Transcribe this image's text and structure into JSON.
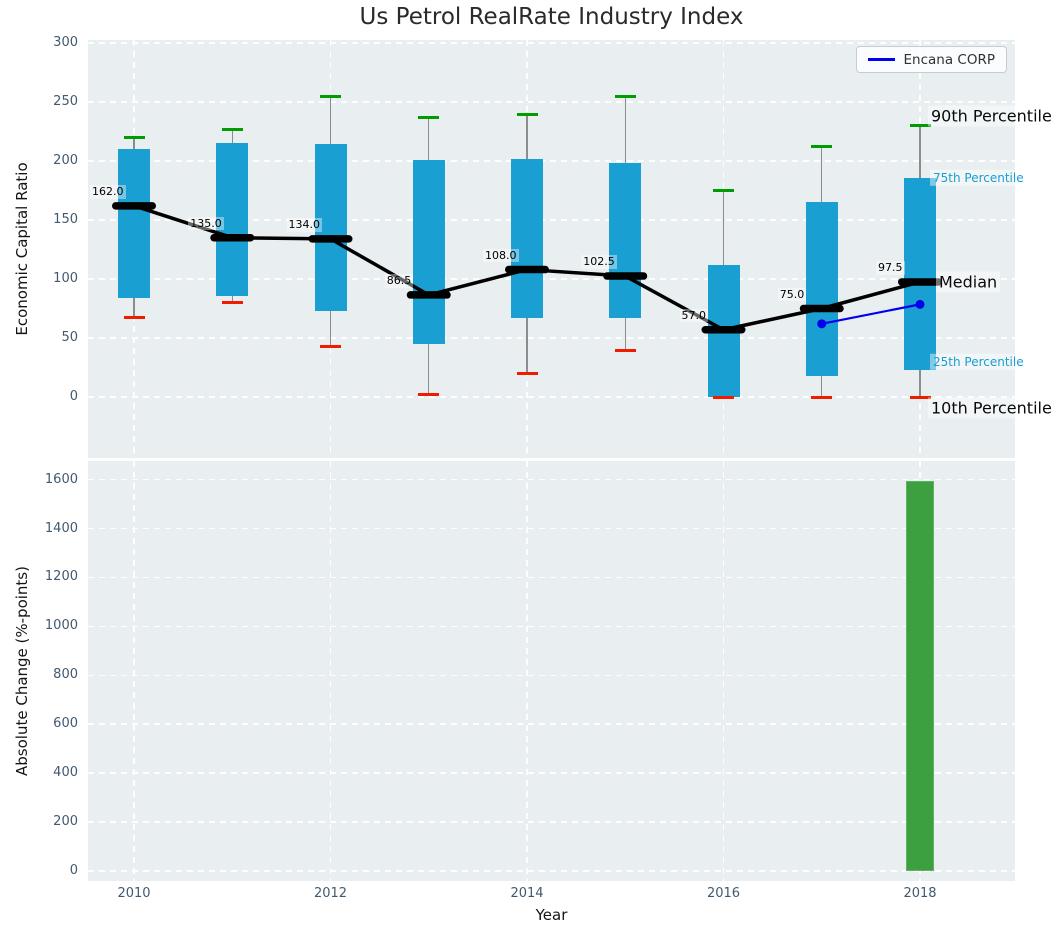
{
  "title": "Us Petrol RealRate Industry Index",
  "legend": {
    "label": "Encana CORP"
  },
  "colors": {
    "axes_bg": "#e9eef0",
    "grid": "#ffffff",
    "box_fill": "#1a9fd2",
    "cap_high": "#009c00",
    "cap_low": "#f21b00",
    "whisker": "#8c8c8c",
    "median": "#000000",
    "company_line": "#0000ee",
    "bar_fill": "#3c9f40",
    "bar_edge": "#5eb360",
    "tick_label": "#415a70",
    "annotation_cyan": "#189ed2"
  },
  "chart_data": [
    {
      "type": "box",
      "title": "Us Petrol RealRate Industry Index",
      "ylabel": "Economic Capital Ratio",
      "ylim": [
        -52,
        303
      ],
      "yticks": [
        0,
        50,
        100,
        150,
        200,
        250,
        300
      ],
      "grid": true,
      "legend_position": "upper right",
      "legend_entries": [
        "Encana CORP"
      ],
      "years": [
        2010,
        2011,
        2012,
        2013,
        2014,
        2015,
        2016,
        2017,
        2018
      ],
      "series": [
        {
          "name": "90th Percentile",
          "values": [
            220,
            227,
            255,
            237,
            239,
            255,
            175,
            212,
            230
          ]
        },
        {
          "name": "75th Percentile",
          "values": [
            210,
            215,
            214,
            201,
            202,
            198,
            112,
            165,
            186
          ]
        },
        {
          "name": "Median",
          "values": [
            162,
            135,
            134,
            86.5,
            108,
            102.5,
            57,
            75,
            97.5
          ]
        },
        {
          "name": "25th Percentile",
          "values": [
            84,
            86,
            73,
            45,
            67,
            67,
            0,
            18,
            23
          ]
        },
        {
          "name": "10th Percentile",
          "values": [
            67,
            80,
            43,
            2,
            20,
            39,
            0,
            0,
            0
          ]
        },
        {
          "name": "Encana CORP",
          "years": [
            2017,
            2018
          ],
          "values": [
            62,
            78.5
          ]
        }
      ],
      "median_labels": [
        "162.0",
        "135.0",
        "134.0",
        "86.5",
        "108.0",
        "102.5",
        "57.0",
        "75.0",
        "97.5"
      ],
      "right_annotations": [
        {
          "text": "90th Percentile",
          "style": "black",
          "anchor": "p90"
        },
        {
          "text": "75th Percentile",
          "style": "cyan",
          "anchor": "p75"
        },
        {
          "text": "Median",
          "style": "black",
          "anchor": "median"
        },
        {
          "text": "25th Percentile",
          "style": "cyan",
          "anchor": "p25"
        },
        {
          "text": "10th Percentile",
          "style": "black",
          "anchor": "p10"
        }
      ]
    },
    {
      "type": "bar",
      "ylabel": "Absolute Change (%-points)",
      "xlabel": "Year",
      "ylim": [
        -45,
        1675
      ],
      "yticks": [
        0,
        200,
        400,
        600,
        800,
        1000,
        1200,
        1400,
        1600
      ],
      "xticks": [
        2010,
        2012,
        2014,
        2016,
        2018
      ],
      "grid": true,
      "categories": [
        2010,
        2011,
        2012,
        2013,
        2014,
        2015,
        2016,
        2017,
        2018
      ],
      "values": [
        null,
        null,
        null,
        null,
        null,
        null,
        null,
        null,
        1595
      ]
    }
  ]
}
